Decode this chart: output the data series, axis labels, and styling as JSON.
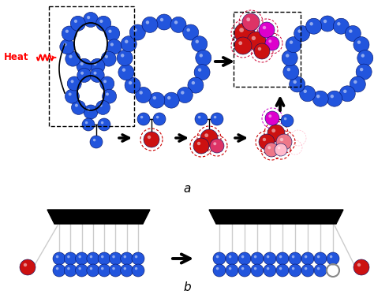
{
  "blue": "#2255dd",
  "red": "#cc1111",
  "magenta": "#dd00cc",
  "pink_red": "#dd3366",
  "light_red": "#ee7788",
  "very_light_red": "#ffbbcc",
  "ghost": "#ffdddd",
  "background": "#ffffff",
  "label_a": "a",
  "label_b": "b",
  "heat_label": "Heat",
  "chain_gray": "#cccccc",
  "black": "#000000"
}
